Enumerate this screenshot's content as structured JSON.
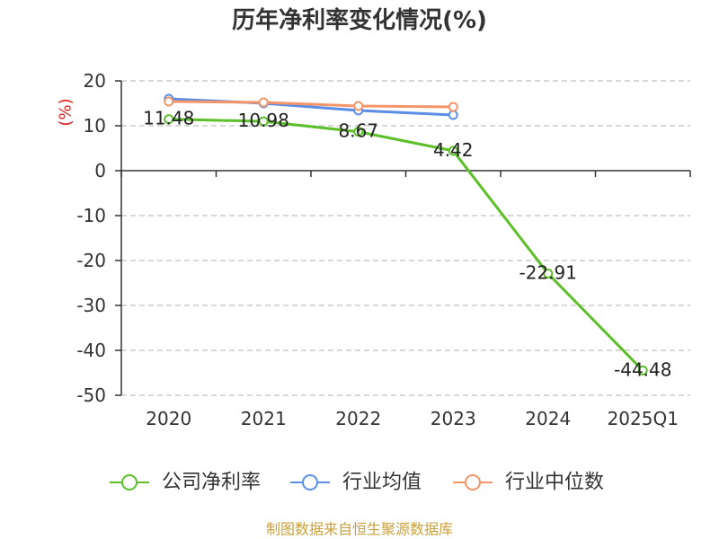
{
  "source_note": "制图数据来自恒生聚源数据库",
  "chart_data": {
    "type": "line",
    "title": "历年净利率变化情况(%)",
    "xlabel": "",
    "ylabel": "(%)",
    "categories": [
      "2020",
      "2021",
      "2022",
      "2023",
      "2024",
      "2025Q1"
    ],
    "ylim": [
      -50,
      20
    ],
    "yticks": [
      20,
      10,
      0,
      -10,
      -20,
      -30,
      -40,
      -50
    ],
    "grid": true,
    "legend_position": "bottom",
    "series": [
      {
        "name": "公司净利率",
        "color": "#5dbf2a",
        "show_labels": true,
        "values": [
          11.48,
          10.98,
          8.67,
          4.42,
          -22.91,
          -44.48
        ]
      },
      {
        "name": "行业均值",
        "color": "#5b8ee6",
        "show_labels": false,
        "values": [
          16.0,
          15.0,
          13.4,
          12.4,
          null,
          null
        ]
      },
      {
        "name": "行业中位数",
        "color": "#f4956a",
        "show_labels": false,
        "values": [
          15.4,
          15.2,
          14.4,
          14.2,
          null,
          null
        ]
      }
    ]
  }
}
